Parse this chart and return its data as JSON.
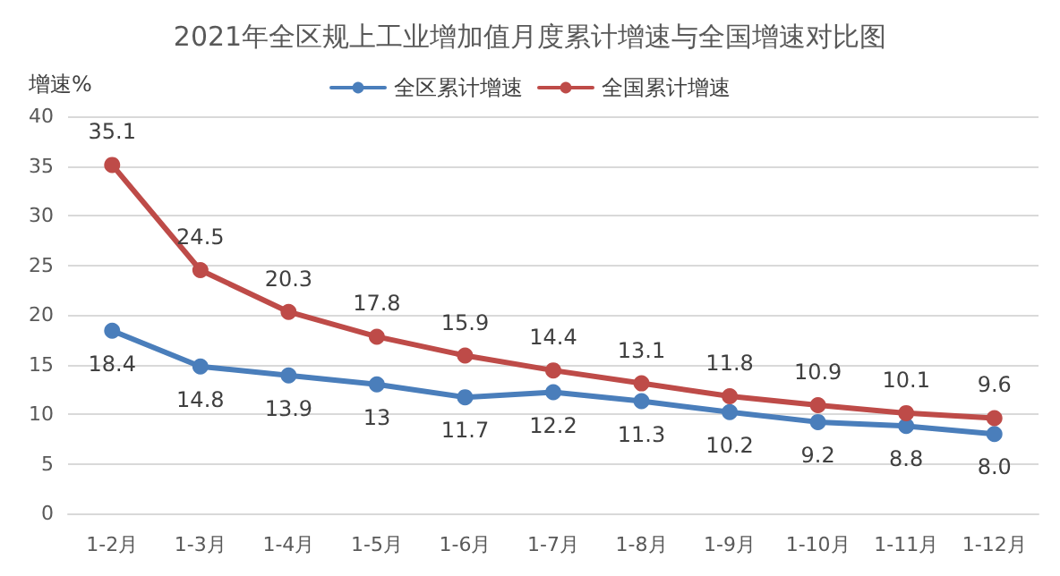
{
  "chart_data": {
    "type": "line",
    "title": "2021年全区规上工业增加值月度累计增速与全国增速对比图",
    "ylabel": "增速%",
    "categories": [
      "1-2月",
      "1-3月",
      "1-4月",
      "1-5月",
      "1-6月",
      "1-7月",
      "1-8月",
      "1-9月",
      "1-10月",
      "1-11月",
      "1-12月"
    ],
    "series": [
      {
        "name": "全区累计增速",
        "color": "#4a7ebb",
        "values": [
          18.4,
          14.8,
          13.9,
          13,
          11.7,
          12.2,
          11.3,
          10.2,
          9.2,
          8.8,
          8.0
        ],
        "value_labels": [
          "18.4",
          "14.8",
          "13.9",
          "13",
          "11.7",
          "12.2",
          "11.3",
          "10.2",
          "9.2",
          "8.8",
          "8.0"
        ]
      },
      {
        "name": "全国累计增速",
        "color": "#be4b48",
        "values": [
          35.1,
          24.5,
          20.3,
          17.8,
          15.9,
          14.4,
          13.1,
          11.8,
          10.9,
          10.1,
          9.6
        ],
        "value_labels": [
          "35.1",
          "24.5",
          "20.3",
          "17.8",
          "15.9",
          "14.4",
          "13.1",
          "11.8",
          "10.9",
          "10.1",
          "9.6"
        ]
      }
    ],
    "ylim": [
      0,
      40
    ],
    "yticks": [
      0,
      5,
      10,
      15,
      20,
      25,
      30,
      35,
      40
    ],
    "grid": "y",
    "legend": "top",
    "marker": "circle",
    "line_style": "solid"
  }
}
